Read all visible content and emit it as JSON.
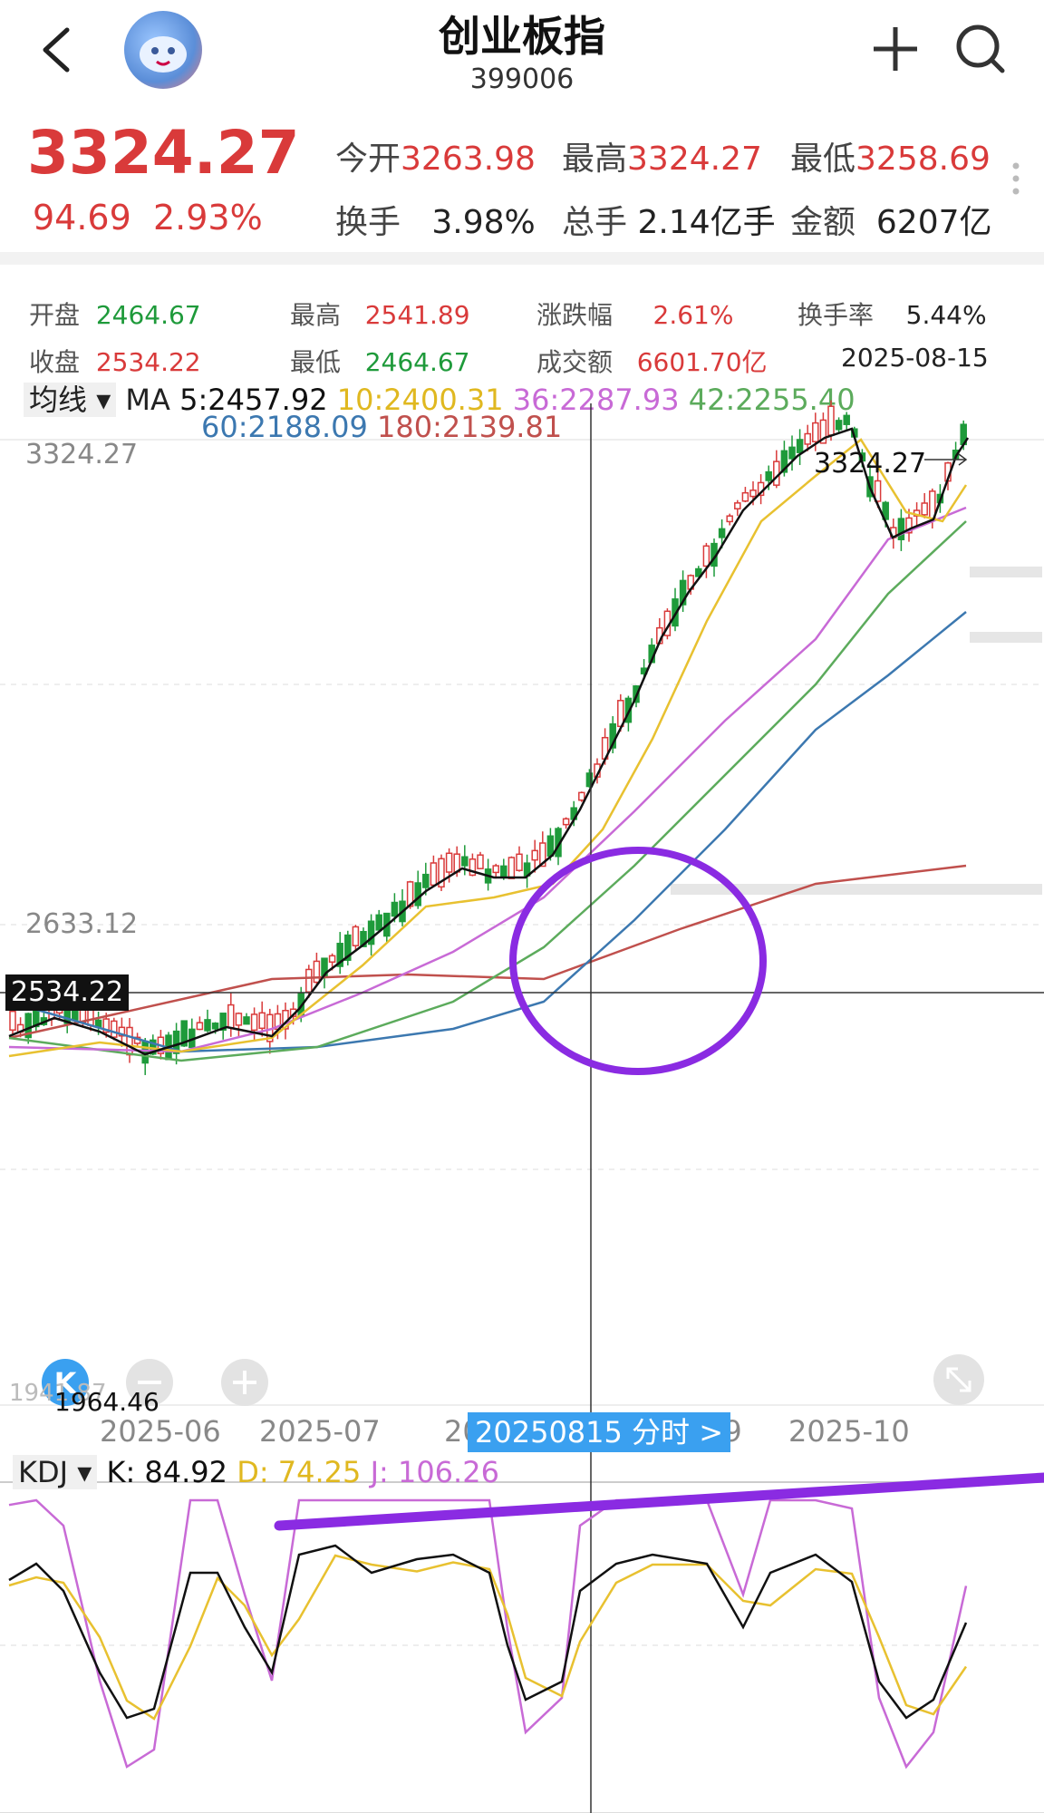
{
  "header": {
    "title": "创业板指",
    "code": "399006"
  },
  "quote": {
    "price": "3324.27",
    "change": "94.69",
    "change_pct": "2.93%",
    "open_label": "今开",
    "open": "3263.98",
    "high_label": "最高",
    "high": "3324.27",
    "low_label": "最低",
    "low": "3258.69",
    "turnover_label": "换手",
    "turnover": "3.98%",
    "volume_label": "总手",
    "volume": "2.14亿手",
    "amount_label": "金额",
    "amount": "6207亿"
  },
  "crosshair_info": {
    "open_label": "开盘",
    "open": "2464.67",
    "high_label": "最高",
    "high": "2541.89",
    "chg_label": "涨跌幅",
    "chg": "2.61%",
    "turn_label": "换手率",
    "turn": "5.44%",
    "close_label": "收盘",
    "close": "2534.22",
    "low_label": "最低",
    "low": "2464.67",
    "amount_label": "成交额",
    "amount": "6601.70亿",
    "date": "2025-08-15"
  },
  "ma": {
    "selector": "均线",
    "label": "MA",
    "ma5": "5:2457.92",
    "ma10": "10:2400.31",
    "ma36": "36:2287.93",
    "ma42": "42:2255.40",
    "ma60": "60:2188.09",
    "ma180": "180:2139.81"
  },
  "axis": {
    "y_top": "3324.27",
    "y_mid": "2633.12",
    "y_cross": "2534.22",
    "y_low": "1964.46",
    "y_low_hidden": "1941.87",
    "peak_label": "3324.27",
    "x": [
      "2025-06",
      "2025-07",
      "20",
      "09",
      "2025-10"
    ],
    "tooltip": "20250815 分时 >"
  },
  "kdj": {
    "selector": "KDJ",
    "k": "K: 84.92",
    "d": "D: 74.25",
    "j": "J: 106.26"
  },
  "colors": {
    "up": "#d93a3a",
    "down": "#1e9a3a",
    "ma5": "#111111",
    "ma10": "#e8c130",
    "ma36": "#c86ad6",
    "ma42": "#5cab5c",
    "ma60": "#3c78b0",
    "ma180": "#c0504d",
    "annotation": "#8a2be2"
  },
  "chart_data": {
    "type": "candlestick",
    "x": [
      "2025-06",
      "2025-07",
      "2025-08",
      "2025-09",
      "2025-10"
    ],
    "ylim": [
      1964.46,
      3324.27
    ],
    "crosshair": {
      "date": "2025-08-15",
      "open": 2464.67,
      "high": 2541.89,
      "low": 2464.67,
      "close": 2534.22
    },
    "series": [
      {
        "name": "MA5",
        "value": 2457.92
      },
      {
        "name": "MA10",
        "value": 2400.31
      },
      {
        "name": "MA36",
        "value": 2287.93
      },
      {
        "name": "MA42",
        "value": 2255.4
      },
      {
        "name": "MA60",
        "value": 2188.09
      },
      {
        "name": "MA180",
        "value": 2139.81
      }
    ],
    "kdj": {
      "K": 84.92,
      "D": 74.25,
      "J": 106.26
    }
  }
}
